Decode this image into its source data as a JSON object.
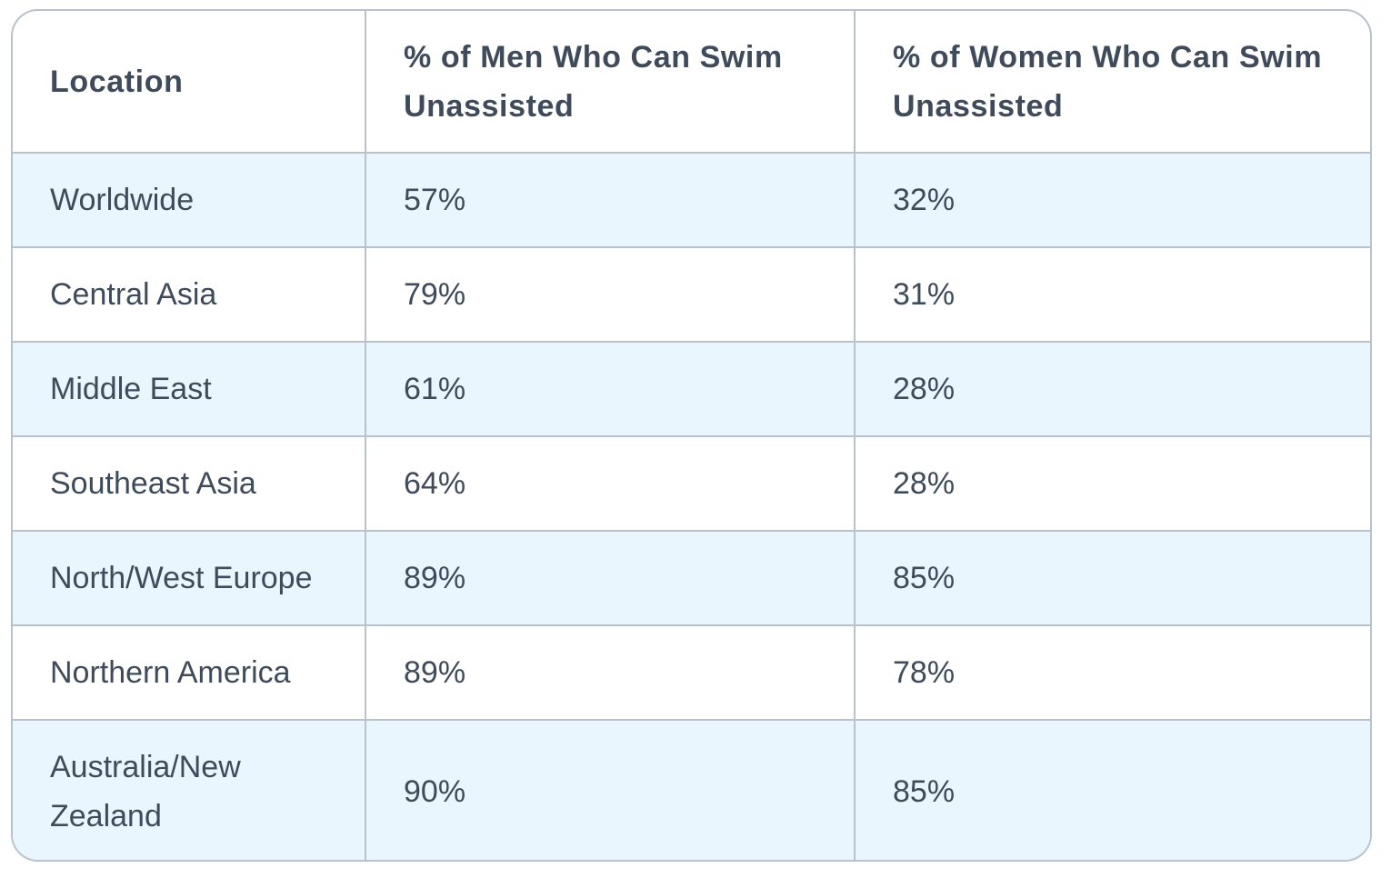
{
  "table": {
    "headers": [
      "Location",
      "% of Men Who Can Swim Unassisted",
      "% of Women Who Can Swim Unassisted"
    ],
    "rows": [
      {
        "location": "Worldwide",
        "men": "57%",
        "women": "32%"
      },
      {
        "location": "Central Asia",
        "men": "79%",
        "women": "31%"
      },
      {
        "location": "Middle East",
        "men": "61%",
        "women": "28%"
      },
      {
        "location": "Southeast Asia",
        "men": "64%",
        "women": "28%"
      },
      {
        "location": "North/West Europe",
        "men": "89%",
        "women": "85%"
      },
      {
        "location": "Northern America",
        "men": "89%",
        "women": "78%"
      },
      {
        "location": "Australia/New Zealand",
        "men": "90%",
        "women": "85%"
      }
    ]
  },
  "colors": {
    "text": "#3f4b5b",
    "border": "#b9c2cc",
    "shaded_row": "#eaf6fd",
    "background": "#ffffff"
  }
}
